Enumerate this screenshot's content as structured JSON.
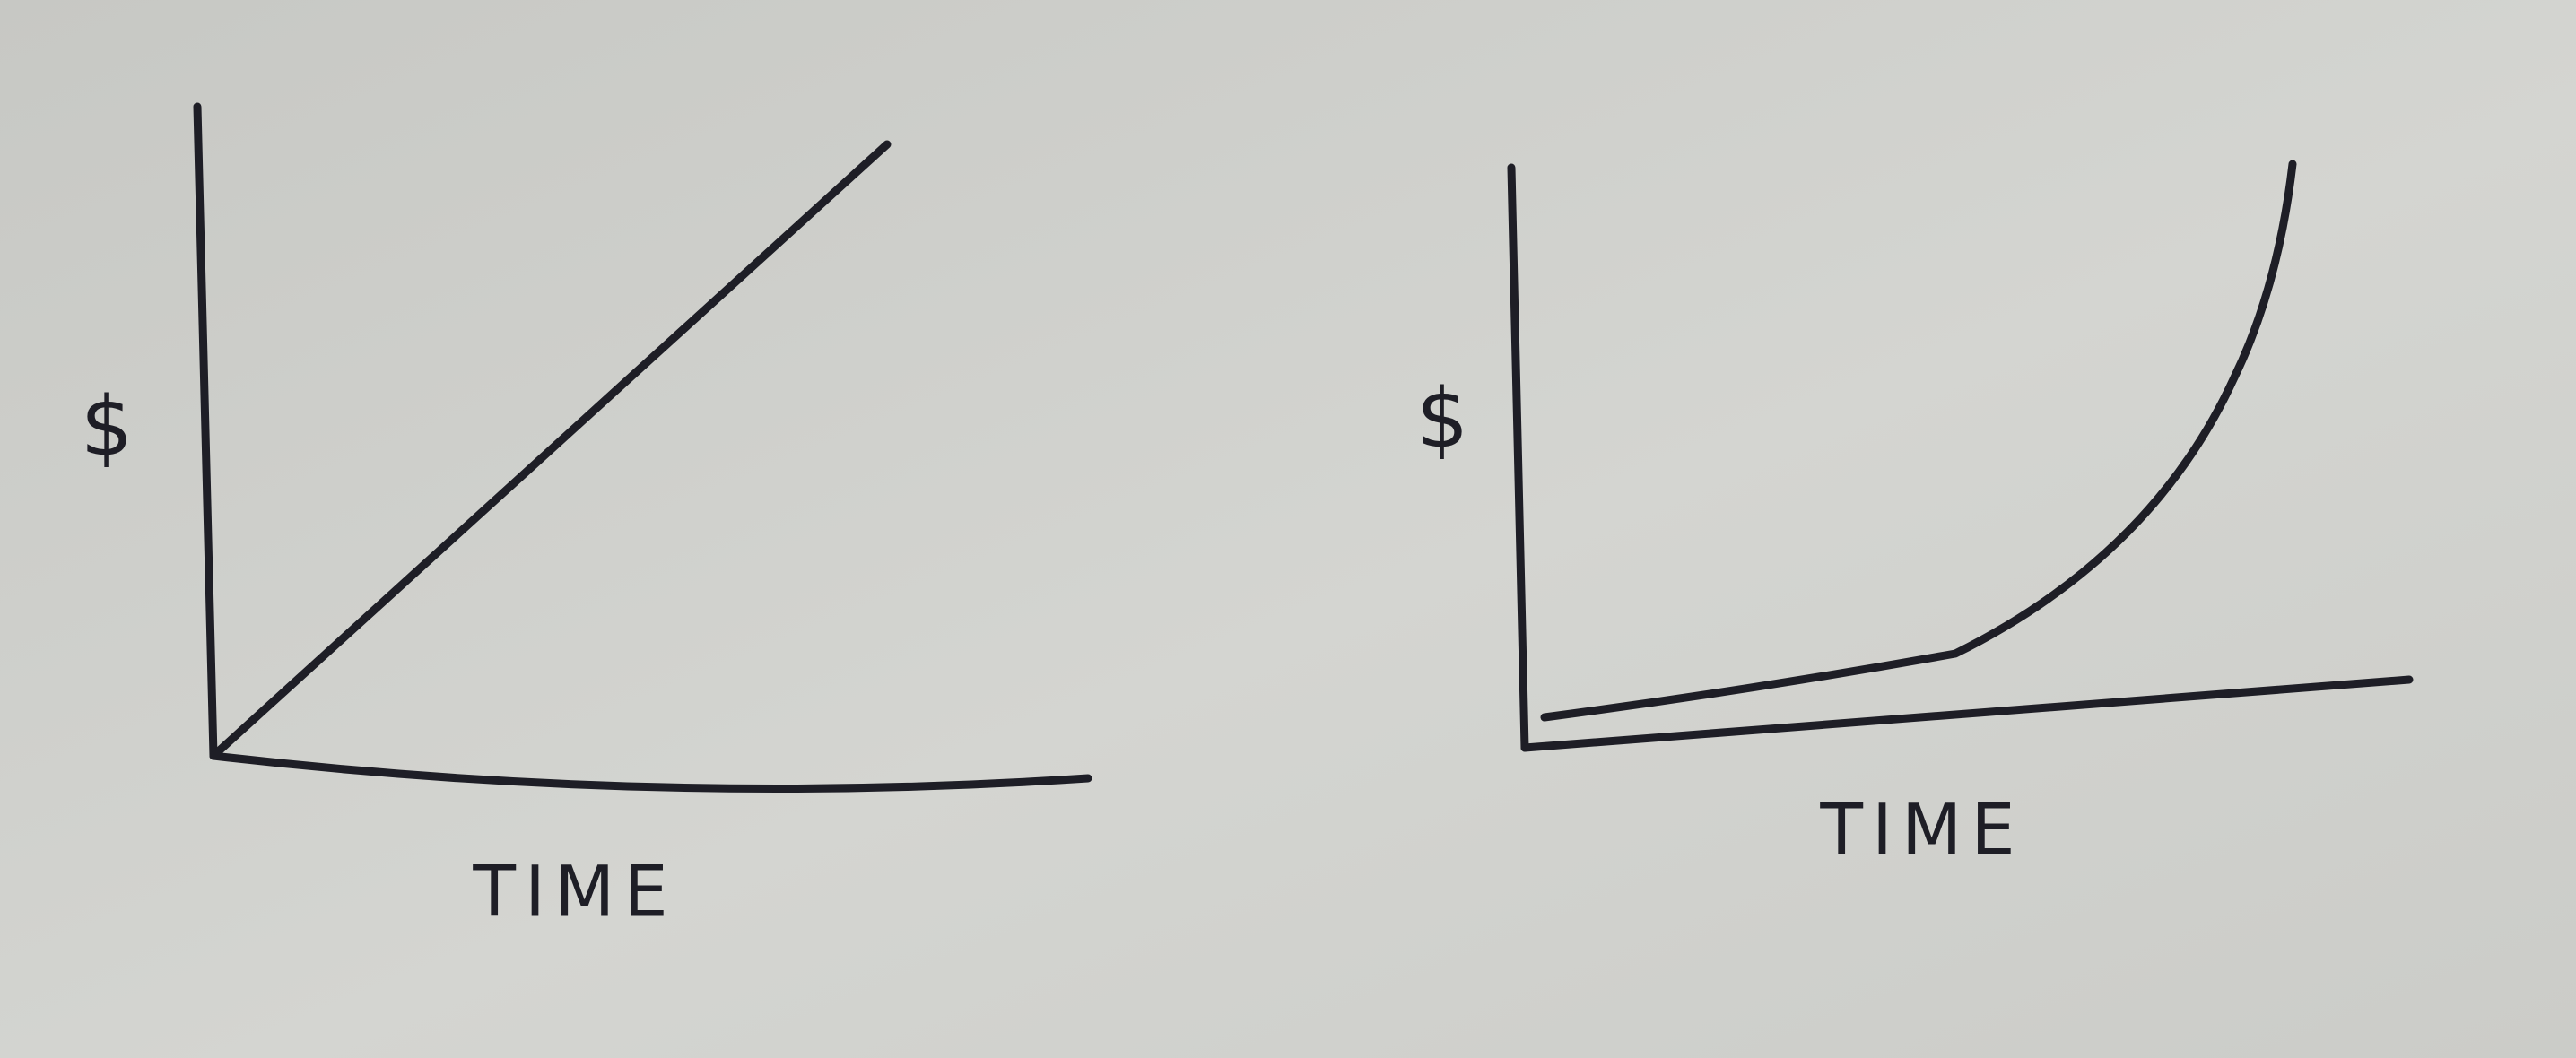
{
  "panels": [
    {
      "y_label": "$",
      "x_label": "TIME"
    },
    {
      "y_label": "$",
      "x_label": "TIME"
    }
  ]
}
